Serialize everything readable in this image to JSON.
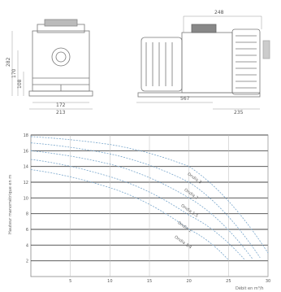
{
  "front_view": {
    "dim_height_total": "282",
    "dim_height_mid": "170",
    "dim_height_low": "108",
    "dim_width_inner": "172",
    "dim_width_outer": "213"
  },
  "side_view": {
    "dim_top": "248",
    "dim_bottom_left": "567",
    "dim_bottom_right": "235"
  },
  "chart_data": {
    "type": "line",
    "title": "",
    "xlabel": "Débit en m³/h",
    "ylabel": "Hauteur manométrique en m",
    "xlim": [
      0,
      30
    ],
    "ylim": [
      0,
      18
    ],
    "x_ticks": [
      "5",
      "10",
      "15",
      "20",
      "25",
      "30"
    ],
    "y_ticks": [
      "2",
      "4",
      "6",
      "8",
      "10",
      "12",
      "14",
      "16",
      "18"
    ],
    "grid": true,
    "series": [
      {
        "name": "Ondia 3/4",
        "points": [
          [
            0,
            13.6
          ],
          [
            10,
            11.3
          ],
          [
            20,
            6.0
          ],
          [
            25,
            2.1
          ]
        ]
      },
      {
        "name": "Ondia 1",
        "points": [
          [
            0,
            14.9
          ],
          [
            10,
            12.7
          ],
          [
            20,
            7.8
          ],
          [
            27,
            2.2
          ]
        ]
      },
      {
        "name": "Ondia 1.5",
        "points": [
          [
            0,
            16.0
          ],
          [
            10,
            14.3
          ],
          [
            20,
            10.0
          ],
          [
            28,
            2.3
          ]
        ]
      },
      {
        "name": "Ondia 2",
        "points": [
          [
            0,
            17.0
          ],
          [
            10,
            15.6
          ],
          [
            20,
            12.0
          ],
          [
            29,
            2.4
          ]
        ]
      },
      {
        "name": "Ondia 3",
        "points": [
          [
            0,
            17.8
          ],
          [
            10,
            16.8
          ],
          [
            20,
            14.0
          ],
          [
            30,
            3.0
          ]
        ]
      }
    ]
  }
}
